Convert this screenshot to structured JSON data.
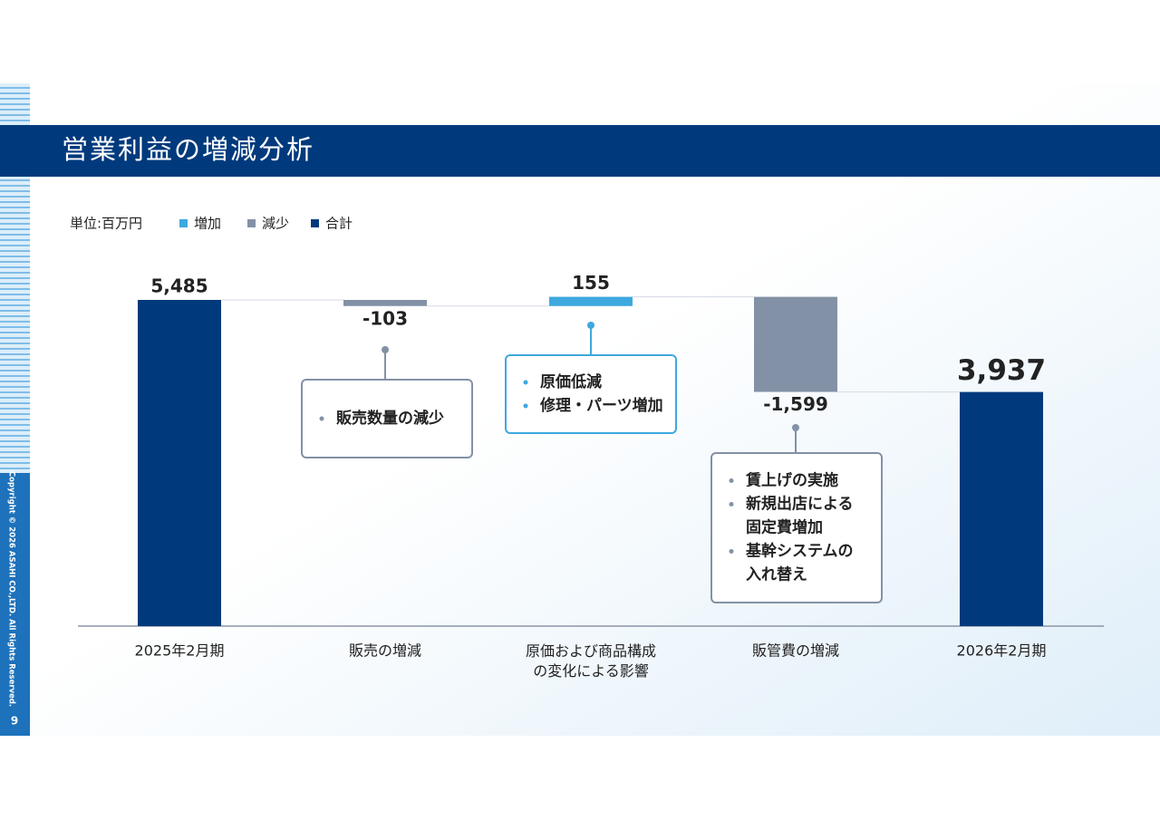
{
  "page_number": "9",
  "copyright": "Copyright © 2026 ASAHI CO.,LTD. All Rights Reserved.",
  "chart_data": {
    "type": "waterfall",
    "title": "営業利益の増減分析",
    "unit_label": "単位:百万円",
    "categories": [
      "2025年2月期",
      "販売の増減",
      "原価および商品構成\nの変化による影響",
      "販管費の増減",
      "2026年2月期"
    ],
    "measure": [
      "total",
      "relative",
      "relative",
      "relative",
      "total"
    ],
    "values": [
      5485,
      -103,
      155,
      -1599,
      3937
    ],
    "value_labels": [
      "5,485",
      "-103",
      "155",
      "-1,599",
      "3,937"
    ],
    "legend": [
      {
        "name": "増加",
        "color": "#3ea8df"
      },
      {
        "name": "減少",
        "color": "#8391a6"
      },
      {
        "name": "合計",
        "color": "#003a7d"
      }
    ],
    "ylim": [
      0,
      5485
    ],
    "notes": [
      [
        "販売数量の減少"
      ],
      [
        "原価低減",
        "修理・パーツ増加"
      ],
      [
        "賃上げの実施",
        "新規出店による\n固定費増加",
        "基幹システムの\n入れ替え"
      ]
    ]
  }
}
